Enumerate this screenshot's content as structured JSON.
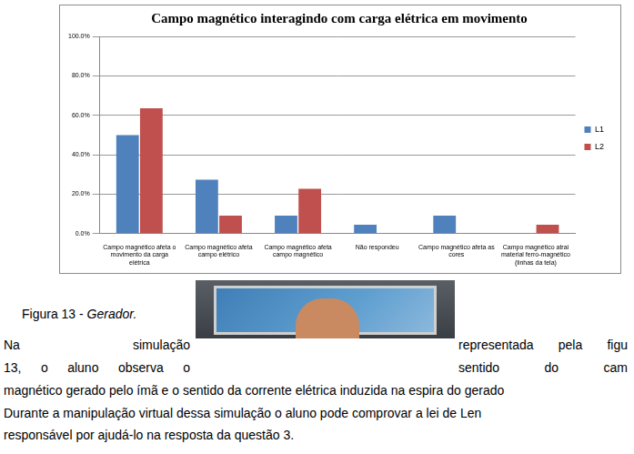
{
  "chart_data": {
    "type": "bar",
    "title": "Campo magnético interagindo com carga elétrica em movimento",
    "categories": [
      "Campo magnético afeta o movimento da carga elétrica",
      "Campo magnético afeta campo elétrico",
      "Campo magnético afeta campo magnético",
      "Não respondeu",
      "Campo magnético afeta as cores",
      "Campo magnético atrai material ferro-magnético (linhas da tela)"
    ],
    "series": [
      {
        "name": "L1",
        "color": "#4f81bd",
        "values": [
          50.0,
          27.3,
          9.1,
          4.5,
          9.1,
          0
        ]
      },
      {
        "name": "L2",
        "color": "#c0504d",
        "values": [
          63.6,
          9.1,
          22.7,
          0,
          0,
          4.5
        ]
      }
    ],
    "ylim": [
      0,
      100
    ],
    "yticks": [
      {
        "value": 0,
        "label": "0.0%"
      },
      {
        "value": 20,
        "label": "20.0%"
      },
      {
        "value": 40,
        "label": "40.0%"
      },
      {
        "value": 60,
        "label": "60.0%"
      },
      {
        "value": 80,
        "label": "80.0%"
      },
      {
        "value": 100,
        "label": "100.0%"
      }
    ],
    "grid": true,
    "legend": "right"
  },
  "document": {
    "caption": {
      "label": "Figura 13 - ",
      "title": "Gerador."
    },
    "lines": [
      {
        "left": [
          "Na",
          "simulação"
        ],
        "right": [
          "representada",
          "pela",
          "figu"
        ]
      },
      {
        "left": [
          "13,",
          "o",
          "aluno",
          "observa",
          "o"
        ],
        "right": [
          "sentido",
          "do",
          "cam"
        ]
      },
      {
        "full": "magnético gerado pelo ímã e o sentido da corrente elétrica induzida na espira do gerado"
      },
      {
        "full": "Durante a manipulação virtual dessa simulação o aluno pode comprovar a lei de Len"
      },
      {
        "full": "responsável por ajudá-lo na resposta da questão 3."
      }
    ]
  }
}
